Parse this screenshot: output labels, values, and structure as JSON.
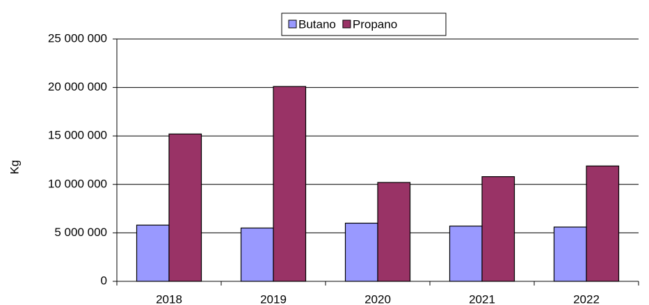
{
  "chart_data": {
    "type": "bar",
    "y_label": "Kg",
    "categories": [
      "2018",
      "2019",
      "2020",
      "2021",
      "2022"
    ],
    "series": [
      {
        "name": "Butano",
        "color": "#9999ff",
        "values": [
          5800000,
          5500000,
          6000000,
          5700000,
          5600000
        ]
      },
      {
        "name": "Propano",
        "color": "#993366",
        "values": [
          15200000,
          20100000,
          10200000,
          10800000,
          11900000
        ]
      }
    ],
    "ylim": [
      0,
      25000000
    ],
    "yticks": [
      0,
      {
        "value": 5000000,
        "label": "5 000 000"
      },
      {
        "value": 10000000,
        "label": "10 000 000"
      },
      {
        "value": 15000000,
        "label": "15 000 000"
      },
      {
        "value": 20000000,
        "label": "20 000 000"
      },
      {
        "value": 25000000,
        "label": "25 000 000"
      }
    ],
    "grid": true,
    "legend": "top"
  }
}
